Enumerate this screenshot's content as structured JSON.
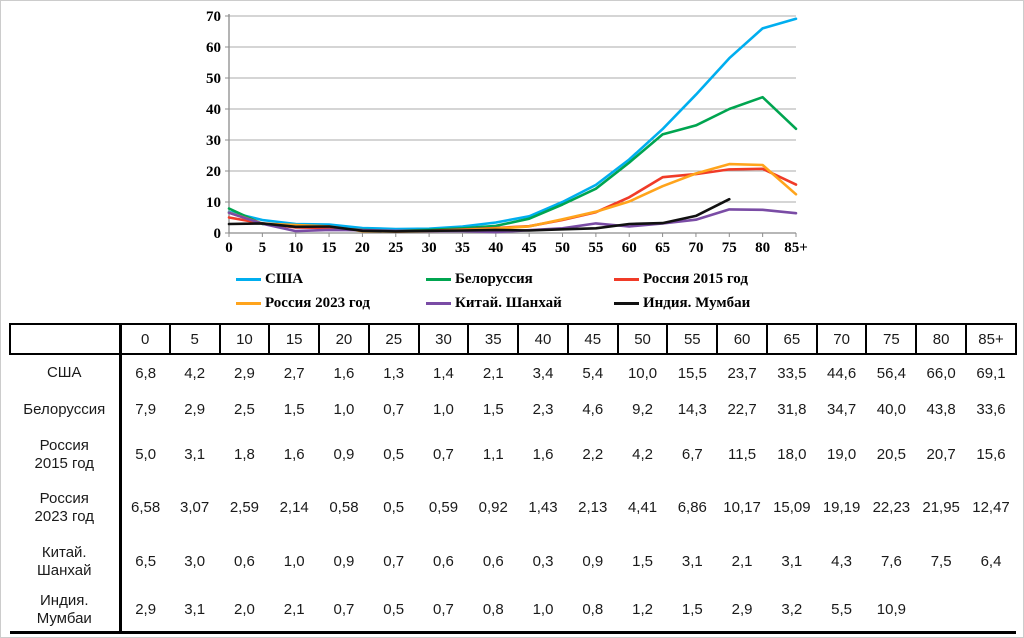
{
  "chart_data": {
    "type": "line",
    "title": "",
    "xlabel": "",
    "ylabel": "",
    "ylim": [
      0,
      70
    ],
    "y_ticks": [
      0,
      10,
      20,
      30,
      40,
      50,
      60,
      70
    ],
    "grid": true,
    "legend_position": "bottom",
    "categories": [
      "0",
      "5",
      "10",
      "15",
      "20",
      "25",
      "30",
      "35",
      "40",
      "45",
      "50",
      "55",
      "60",
      "65",
      "70",
      "75",
      "80",
      "85+"
    ],
    "series": [
      {
        "name": "США",
        "color": "#00AEEF",
        "values": [
          6.8,
          4.2,
          2.9,
          2.7,
          1.6,
          1.3,
          1.4,
          2.1,
          3.4,
          5.4,
          10.0,
          15.5,
          23.7,
          33.5,
          44.6,
          56.4,
          66.0,
          69.1
        ]
      },
      {
        "name": "Белоруссия",
        "color": "#00A550",
        "values": [
          7.9,
          2.9,
          2.5,
          1.5,
          1.0,
          0.7,
          1.0,
          1.5,
          2.3,
          4.6,
          9.2,
          14.3,
          22.7,
          31.8,
          34.7,
          40.0,
          43.8,
          33.6
        ]
      },
      {
        "name": "Россия 2015 год",
        "color": "#F03B28",
        "values": [
          5.0,
          3.1,
          1.8,
          1.6,
          0.9,
          0.5,
          0.7,
          1.1,
          1.6,
          2.2,
          4.2,
          6.7,
          11.5,
          18.0,
          19.0,
          20.5,
          20.7,
          15.6
        ]
      },
      {
        "name": "Россия 2023 год",
        "color": "#FFA41C",
        "values": [
          6.58,
          3.07,
          2.59,
          2.14,
          0.58,
          0.5,
          0.59,
          0.92,
          1.43,
          2.13,
          4.41,
          6.86,
          10.17,
          15.09,
          19.19,
          22.23,
          21.95,
          12.47
        ]
      },
      {
        "name": "Китай. Шанхай",
        "color": "#7A4CA5",
        "values": [
          6.5,
          3.0,
          0.6,
          1.0,
          0.9,
          0.7,
          0.6,
          0.6,
          0.3,
          0.9,
          1.5,
          3.1,
          2.1,
          3.1,
          4.3,
          7.6,
          7.5,
          6.4
        ]
      },
      {
        "name": "Индия. Мумбаи",
        "color": "#111111",
        "values": [
          2.9,
          3.1,
          2.0,
          2.1,
          0.7,
          0.5,
          0.7,
          0.8,
          1.0,
          0.8,
          1.2,
          1.5,
          2.9,
          3.2,
          5.5,
          10.9,
          null,
          null
        ]
      }
    ],
    "legend_rows": [
      [
        "США",
        "Белоруссия",
        "Россия 2015 год"
      ],
      [
        "Россия 2023 год",
        "Китай. Шанхай",
        "Индия. Мумбаи"
      ]
    ]
  },
  "table": {
    "corner_label": "",
    "columns": [
      "0",
      "5",
      "10",
      "15",
      "20",
      "25",
      "30",
      "35",
      "40",
      "45",
      "50",
      "55",
      "60",
      "65",
      "70",
      "75",
      "80",
      "85+"
    ],
    "rows": [
      {
        "label": "США",
        "cells": [
          "6,8",
          "4,2",
          "2,9",
          "2,7",
          "1,6",
          "1,3",
          "1,4",
          "2,1",
          "3,4",
          "5,4",
          "10,0",
          "15,5",
          "23,7",
          "33,5",
          "44,6",
          "56,4",
          "66,0",
          "69,1"
        ]
      },
      {
        "label": "Белоруссия",
        "cells": [
          "7,9",
          "2,9",
          "2,5",
          "1,5",
          "1,0",
          "0,7",
          "1,0",
          "1,5",
          "2,3",
          "4,6",
          "9,2",
          "14,3",
          "22,7",
          "31,8",
          "34,7",
          "40,0",
          "43,8",
          "33,6"
        ]
      },
      {
        "label": "Россия\n2015 год",
        "cells": [
          "5,0",
          "3,1",
          "1,8",
          "1,6",
          "0,9",
          "0,5",
          "0,7",
          "1,1",
          "1,6",
          "2,2",
          "4,2",
          "6,7",
          "11,5",
          "18,0",
          "19,0",
          "20,5",
          "20,7",
          "15,6"
        ]
      },
      {
        "label": "Россия\n2023 год",
        "cells": [
          "6,58",
          "3,07",
          "2,59",
          "2,14",
          "0,58",
          "0,5",
          "0,59",
          "0,92",
          "1,43",
          "2,13",
          "4,41",
          "6,86",
          "10,17",
          "15,09",
          "19,19",
          "22,23",
          "21,95",
          "12,47"
        ]
      },
      {
        "label": "Китай.\nШанхай",
        "cells": [
          "6,5",
          "3,0",
          "0,6",
          "1,0",
          "0,9",
          "0,7",
          "0,6",
          "0,6",
          "0,3",
          "0,9",
          "1,5",
          "3,1",
          "2,1",
          "3,1",
          "4,3",
          "7,6",
          "7,5",
          "6,4"
        ]
      },
      {
        "label": "Индия.\nМумбаи",
        "cells": [
          "2,9",
          "3,1",
          "2,0",
          "2,1",
          "0,7",
          "0,5",
          "0,7",
          "0,8",
          "1,0",
          "0,8",
          "1,2",
          "1,5",
          "2,9",
          "3,2",
          "5,5",
          "10,9",
          "",
          ""
        ]
      }
    ]
  }
}
